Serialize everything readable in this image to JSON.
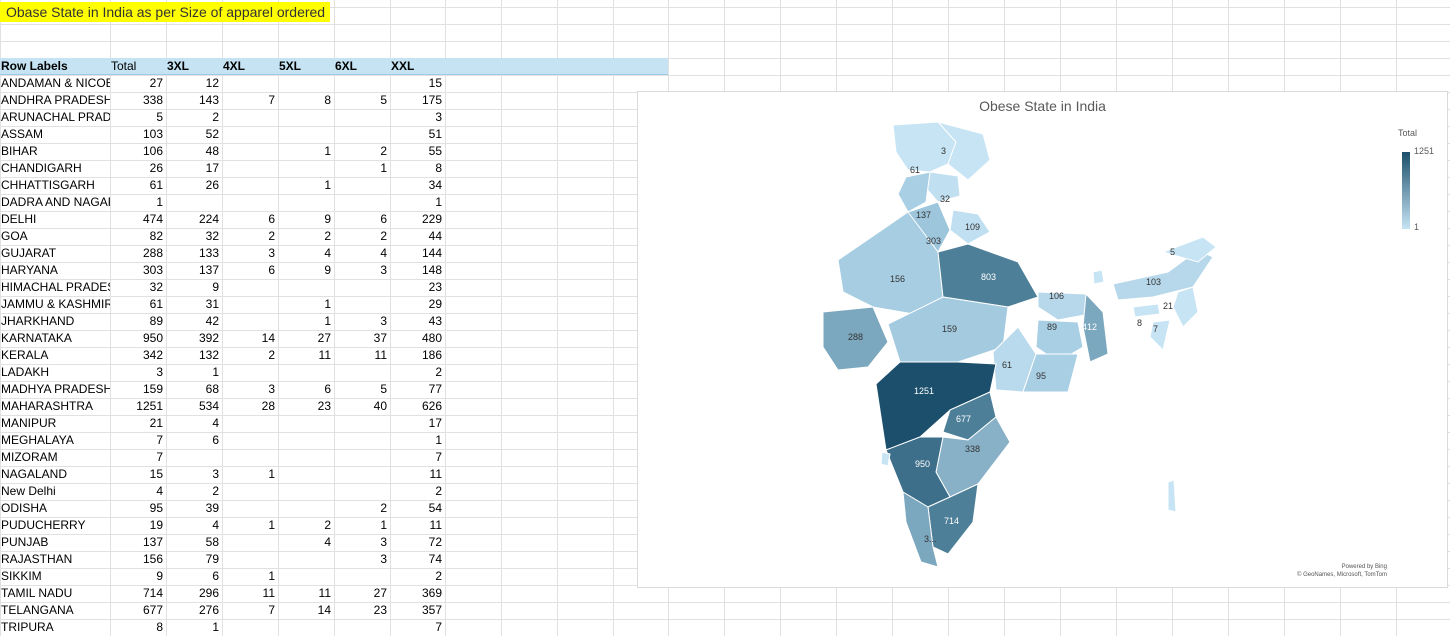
{
  "sheet_title": "Obase State in India as per Size of apparel ordered",
  "table": {
    "headers": [
      "Row Labels",
      "Total",
      "3XL",
      "4XL",
      "5XL",
      "6XL",
      "XXL"
    ],
    "rows": [
      [
        "ANDAMAN & NICOBA",
        "27",
        "12",
        "",
        "",
        "",
        "15"
      ],
      [
        "ANDHRA PRADESH",
        "338",
        "143",
        "7",
        "8",
        "5",
        "175"
      ],
      [
        "ARUNACHAL PRADES",
        "5",
        "2",
        "",
        "",
        "",
        "3"
      ],
      [
        "ASSAM",
        "103",
        "52",
        "",
        "",
        "",
        "51"
      ],
      [
        "BIHAR",
        "106",
        "48",
        "",
        "1",
        "2",
        "55"
      ],
      [
        "CHANDIGARH",
        "26",
        "17",
        "",
        "",
        "1",
        "8"
      ],
      [
        "CHHATTISGARH",
        "61",
        "26",
        "",
        "1",
        "",
        "34"
      ],
      [
        "DADRA AND NAGAR",
        "1",
        "",
        "",
        "",
        "",
        "1"
      ],
      [
        "DELHI",
        "474",
        "224",
        "6",
        "9",
        "6",
        "229"
      ],
      [
        "GOA",
        "82",
        "32",
        "2",
        "2",
        "2",
        "44"
      ],
      [
        "GUJARAT",
        "288",
        "133",
        "3",
        "4",
        "4",
        "144"
      ],
      [
        "HARYANA",
        "303",
        "137",
        "6",
        "9",
        "3",
        "148"
      ],
      [
        "HIMACHAL PRADESH",
        "32",
        "9",
        "",
        "",
        "",
        "23"
      ],
      [
        "JAMMU & KASHMIR",
        "61",
        "31",
        "",
        "1",
        "",
        "29"
      ],
      [
        "JHARKHAND",
        "89",
        "42",
        "",
        "1",
        "3",
        "43"
      ],
      [
        "KARNATAKA",
        "950",
        "392",
        "14",
        "27",
        "37",
        "480"
      ],
      [
        "KERALA",
        "342",
        "132",
        "2",
        "11",
        "11",
        "186"
      ],
      [
        "LADAKH",
        "3",
        "1",
        "",
        "",
        "",
        "2"
      ],
      [
        "MADHYA PRADESH",
        "159",
        "68",
        "3",
        "6",
        "5",
        "77"
      ],
      [
        "MAHARASHTRA",
        "1251",
        "534",
        "28",
        "23",
        "40",
        "626"
      ],
      [
        "MANIPUR",
        "21",
        "4",
        "",
        "",
        "",
        "17"
      ],
      [
        "MEGHALAYA",
        "7",
        "6",
        "",
        "",
        "",
        "1"
      ],
      [
        "MIZORAM",
        "7",
        "",
        "",
        "",
        "",
        "7"
      ],
      [
        "NAGALAND",
        "15",
        "3",
        "1",
        "",
        "",
        "11"
      ],
      [
        "New Delhi",
        "4",
        "2",
        "",
        "",
        "",
        "2"
      ],
      [
        "ODISHA",
        "95",
        "39",
        "",
        "",
        "2",
        "54"
      ],
      [
        "PUDUCHERRY",
        "19",
        "4",
        "1",
        "2",
        "1",
        "11"
      ],
      [
        "PUNJAB",
        "137",
        "58",
        "",
        "4",
        "3",
        "72"
      ],
      [
        "RAJASTHAN",
        "156",
        "79",
        "",
        "",
        "3",
        "74"
      ],
      [
        "SIKKIM",
        "9",
        "6",
        "1",
        "",
        "",
        "2"
      ],
      [
        "TAMIL NADU",
        "714",
        "296",
        "11",
        "11",
        "27",
        "369"
      ],
      [
        "TELANGANA",
        "677",
        "276",
        "7",
        "14",
        "23",
        "357"
      ],
      [
        "TRIPURA",
        "8",
        "1",
        "",
        "",
        "",
        "7"
      ]
    ]
  },
  "map_chart": {
    "title": "Obese  State in India",
    "legend_title": "Total",
    "legend_max": "1251",
    "legend_min": "1",
    "credit_line1": "Powered by Bing",
    "credit_line2": "© GeoNames, Microsoft, TomTom",
    "colors": {
      "high": "#1b4f6b",
      "mid": "#4e7f98",
      "low": "#c6e4f4"
    },
    "labels": [
      "3",
      "61",
      "32",
      "137",
      "109",
      "303",
      "156",
      "803",
      "5",
      "103",
      "106",
      "21",
      "288",
      "159",
      "89",
      "412",
      "8",
      "7",
      "61",
      "95",
      "1251",
      "677",
      "338",
      "950",
      "714",
      "3..."
    ]
  }
}
